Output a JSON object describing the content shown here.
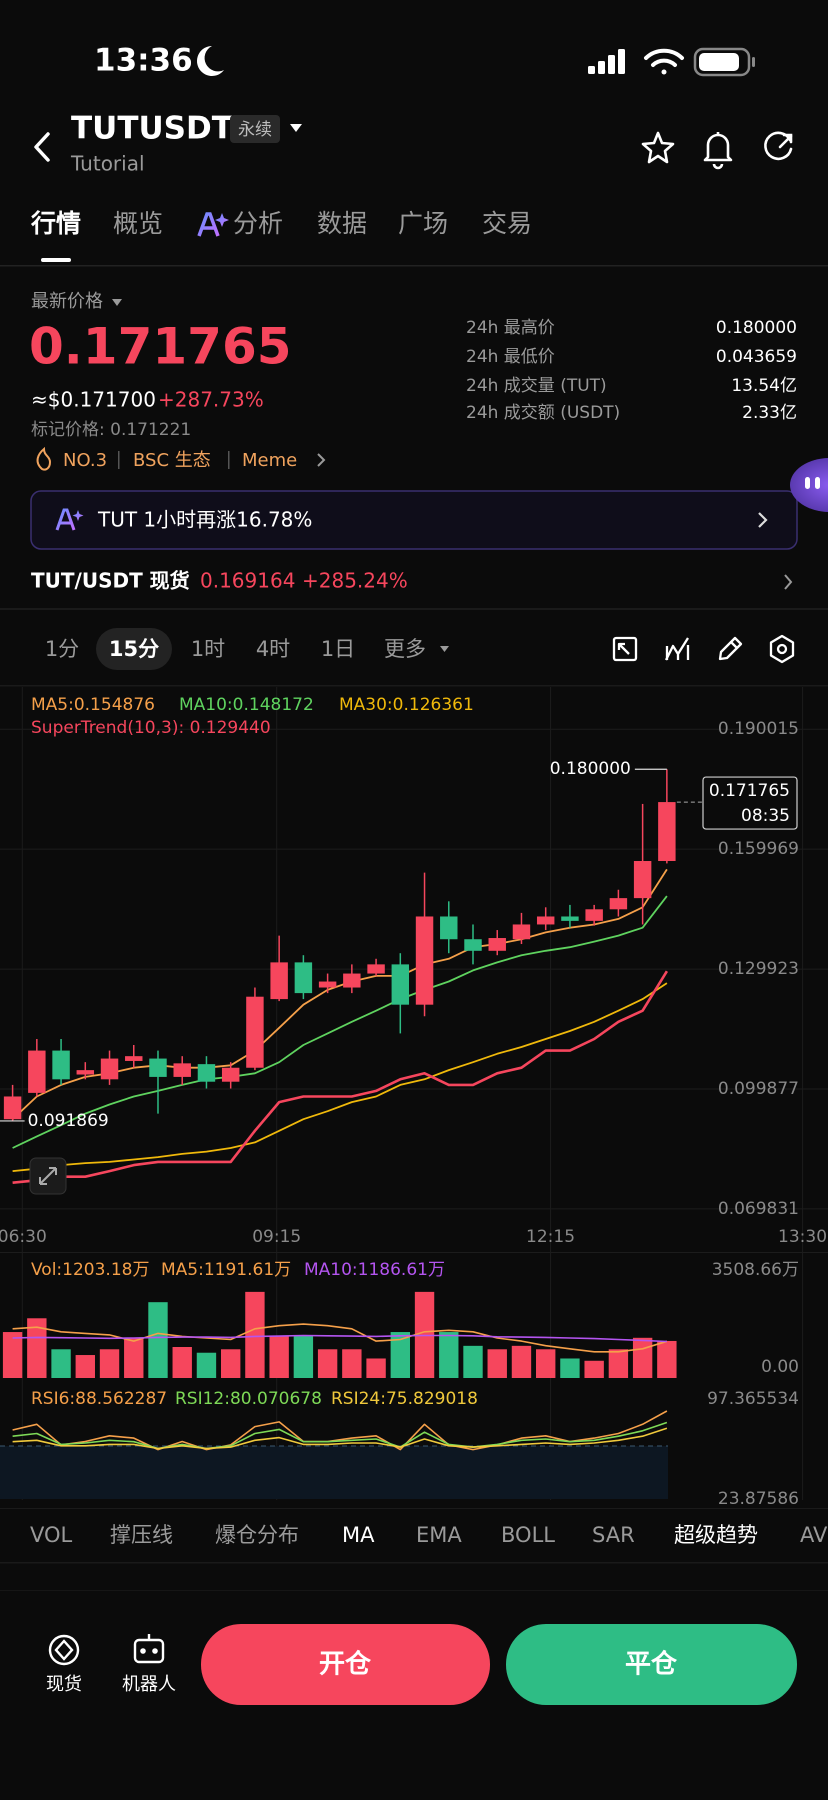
{
  "status_bar": {
    "time": "13:36"
  },
  "header": {
    "symbol": "TUTUSDT",
    "badge": "永续",
    "subtitle": "Tutorial"
  },
  "tabs": {
    "items": [
      "行情",
      "概览",
      "分析",
      "数据",
      "广场",
      "交易"
    ],
    "active": 0
  },
  "ticker": {
    "label": "最新价格",
    "price": "0.171765",
    "usd": "≈$0.171700",
    "change": "+287.73%",
    "mark_price": "标记价格: 0.171221",
    "tags": [
      "NO.3",
      "BSC 生态",
      "Meme"
    ]
  },
  "stats": [
    {
      "label": "24h 最高价",
      "value": "0.180000"
    },
    {
      "label": "24h 最低价",
      "value": "0.043659"
    },
    {
      "label": "24h 成交量 (TUT)",
      "value": "13.54亿"
    },
    {
      "label": "24h 成交额 (USDT)",
      "value": "2.33亿"
    }
  ],
  "banner": {
    "text": "TUT 1小时再涨16.78%"
  },
  "spot": {
    "pair": "TUT/USDT 现货",
    "price": "0.169164",
    "change": "+285.24%"
  },
  "intervals": {
    "items": [
      "1分",
      "15分",
      "1时",
      "4时",
      "1日",
      "更多"
    ],
    "active": 1
  },
  "chart_data": [
    {
      "type": "candlestick",
      "x": [
        0,
        1,
        2,
        3,
        4,
        5,
        6,
        7,
        8,
        9,
        10,
        11,
        12,
        13,
        14,
        15,
        16,
        17,
        18,
        19,
        20,
        21,
        22,
        23,
        24,
        25,
        26,
        27
      ],
      "open": [
        0.0923,
        0.0989,
        0.1095,
        0.1035,
        0.1023,
        0.1069,
        0.1075,
        0.1029,
        0.1061,
        0.1017,
        0.1052,
        0.1224,
        0.1316,
        0.1253,
        0.1253,
        0.1288,
        0.1311,
        0.121,
        0.1431,
        0.1374,
        0.1345,
        0.1374,
        0.1411,
        0.1431,
        0.142,
        0.1449,
        0.1477,
        0.157
      ],
      "high": [
        0.1009,
        0.1124,
        0.1124,
        0.1066,
        0.1095,
        0.1109,
        0.1095,
        0.1081,
        0.1081,
        0.1066,
        0.1253,
        0.1383,
        0.1334,
        0.1288,
        0.1311,
        0.1325,
        0.1339,
        0.1541,
        0.1469,
        0.1411,
        0.1397,
        0.144,
        0.1454,
        0.146,
        0.146,
        0.1498,
        0.1713,
        0.18
      ],
      "low": [
        0.091869,
        0.098,
        0.1009,
        0.1023,
        0.1009,
        0.1052,
        0.0937,
        0.1009,
        0.1,
        0.1,
        0.1046,
        0.1219,
        0.1224,
        0.1239,
        0.1239,
        0.1282,
        0.1138,
        0.1181,
        0.1339,
        0.1311,
        0.1334,
        0.1362,
        0.1397,
        0.1403,
        0.1408,
        0.1431,
        0.1411,
        0.1564
      ],
      "close": [
        0.098,
        0.1095,
        0.1023,
        0.1046,
        0.1075,
        0.1081,
        0.1029,
        0.1063,
        0.1017,
        0.1052,
        0.123,
        0.1316,
        0.1239,
        0.1268,
        0.1288,
        0.1311,
        0.121,
        0.1431,
        0.1374,
        0.1345,
        0.1377,
        0.1411,
        0.1431,
        0.142,
        0.1449,
        0.1477,
        0.157,
        0.171765
      ],
      "up_color": "#f6465d",
      "down_color": "#2ebd85",
      "series": [
        {
          "name": "MA5:0.154876",
          "color": "#f5a04a",
          "values": [
            0.0923,
            0.098,
            0.1009,
            0.1029,
            0.1038,
            0.1052,
            0.1058,
            0.1052,
            0.1052,
            0.1058,
            0.1095,
            0.1152,
            0.121,
            0.1247,
            0.1268,
            0.1282,
            0.1282,
            0.1311,
            0.1325,
            0.1354,
            0.1362,
            0.1374,
            0.1391,
            0.1403,
            0.1411,
            0.1425,
            0.1454,
            0.1549
          ]
        },
        {
          "name": "MA10:0.148172",
          "color": "#5fd35f",
          "values": [
            0.0851,
            0.088,
            0.0908,
            0.0937,
            0.096,
            0.098,
            0.0994,
            0.1009,
            0.1023,
            0.1029,
            0.1038,
            0.1066,
            0.1109,
            0.1138,
            0.1167,
            0.1195,
            0.1224,
            0.1247,
            0.1268,
            0.1296,
            0.1316,
            0.1334,
            0.1345,
            0.1354,
            0.1368,
            0.1383,
            0.1403,
            0.1482
          ]
        },
        {
          "name": "MA30:0.126361",
          "color": "#f0b90b",
          "values": [
            0.0793,
            0.0799,
            0.0808,
            0.0813,
            0.0816,
            0.0822,
            0.0828,
            0.0836,
            0.0842,
            0.0851,
            0.0865,
            0.0894,
            0.0923,
            0.0943,
            0.0966,
            0.098,
            0.1009,
            0.1023,
            0.1046,
            0.1066,
            0.1087,
            0.1104,
            0.1124,
            0.1144,
            0.1167,
            0.1195,
            0.1224,
            0.1264
          ]
        },
        {
          "name": "SuperTrend(10,3): 0.129440",
          "color": "#f6465d",
          "values": [
            0.0764,
            0.077,
            0.0779,
            0.0779,
            0.0793,
            0.0808,
            0.0816,
            0.0816,
            0.0816,
            0.0816,
            0.0894,
            0.0966,
            0.098,
            0.098,
            0.098,
            0.0994,
            0.1023,
            0.1038,
            0.1009,
            0.1009,
            0.1038,
            0.1052,
            0.1095,
            0.1095,
            0.1124,
            0.1167,
            0.1195,
            0.1294
          ]
        }
      ],
      "xlim": [
        -0.52,
        33.65
      ],
      "ylim": [
        0.0673,
        0.2006
      ],
      "yticks": [
        0.190015,
        0.159969,
        0.129923,
        0.099877,
        0.069831
      ],
      "xticks": [
        {
          "value": 0.4,
          "label": "06:30"
        },
        {
          "value": 10.9,
          "label": "09:15"
        },
        {
          "value": 22.2,
          "label": "12:15"
        },
        {
          "value": 32.6,
          "label": "13:30"
        }
      ],
      "grid": true,
      "max_label": "0.180000",
      "min_label": "0.091869",
      "last_label": "0.171765",
      "countdown": "08:35"
    },
    {
      "type": "bar",
      "series": [
        {
          "name": "Vol:1203.18万",
          "color": "#f5a04a",
          "values": [
            1493,
            1940,
            933,
            746,
            933,
            1306,
            2463,
            1007,
            821,
            933,
            2798,
            1381,
            1381,
            933,
            933,
            634,
            1493,
            2798,
            1493,
            1045,
            933,
            1045,
            933,
            634,
            560,
            933,
            1306,
            1203.18
          ]
        },
        {
          "name": "MA5:1191.61万",
          "color": "#f5a04a",
          "values": [
            1600,
            1650,
            1500,
            1450,
            1400,
            1200,
            1450,
            1350,
            1300,
            1250,
            1600,
            1700,
            1750,
            1700,
            1600,
            1200,
            1250,
            1500,
            1550,
            1500,
            1300,
            1200,
            1050,
            950,
            850,
            850,
            950,
            1191.61
          ]
        },
        {
          "name": "MA10:1186.61万",
          "color": "#b455f0",
          "values": [
            1300,
            1320,
            1310,
            1300,
            1290,
            1300,
            1320,
            1330,
            1330,
            1320,
            1350,
            1360,
            1380,
            1370,
            1360,
            1350,
            1370,
            1380,
            1380,
            1370,
            1340,
            1330,
            1320,
            1300,
            1280,
            1250,
            1220,
            1186.61
          ]
        }
      ],
      "ylim": [
        0,
        3508.66
      ],
      "yticks": [
        {
          "value": 3508.66,
          "label": "3508.66万"
        },
        {
          "value": 0,
          "label": "0.00"
        }
      ]
    },
    {
      "type": "line",
      "series": [
        {
          "name": "RSI6:88.562287",
          "color": "#f5a04a",
          "values": [
            74.6,
            78.8,
            63.6,
            66.1,
            70.3,
            68.6,
            60.2,
            66.1,
            60.2,
            63.6,
            77.1,
            80.5,
            66.1,
            66.1,
            68.6,
            70.3,
            60.2,
            78.8,
            63.6,
            60.2,
            63.6,
            68.6,
            70.3,
            66.1,
            68.6,
            72.0,
            78.8,
            88.562287
          ]
        },
        {
          "name": "RSI12:80.070678",
          "color": "#7ed957",
          "values": [
            70,
            72,
            64,
            65,
            67,
            66,
            61,
            64,
            61,
            63,
            72,
            75,
            66,
            66,
            67,
            68,
            62,
            73,
            64,
            62,
            64,
            67,
            68,
            66,
            67,
            70,
            74,
            80.070678
          ]
        },
        {
          "name": "RSI24:75.829018",
          "color": "#f0c93c",
          "values": [
            66,
            67,
            63,
            63,
            64,
            64,
            61,
            63,
            61,
            62,
            67,
            69,
            64,
            64,
            65,
            65,
            62,
            68,
            63,
            62,
            63,
            64,
            65,
            64,
            65,
            67,
            70,
            75.829018
          ]
        }
      ],
      "ylim": [
        23.87586,
        97.365534
      ],
      "yticks": [
        97.365534,
        23.87586
      ]
    }
  ],
  "indicator_tabs": {
    "items": [
      "VOL",
      "撑压线",
      "爆仓分布",
      "MA",
      "EMA",
      "BOLL",
      "SAR",
      "超级趋势",
      "AV"
    ],
    "active": [
      3,
      7
    ]
  },
  "bottom_bar": {
    "nav": [
      "现货",
      "机器人"
    ],
    "buttons": [
      "开仓",
      "平仓"
    ]
  }
}
